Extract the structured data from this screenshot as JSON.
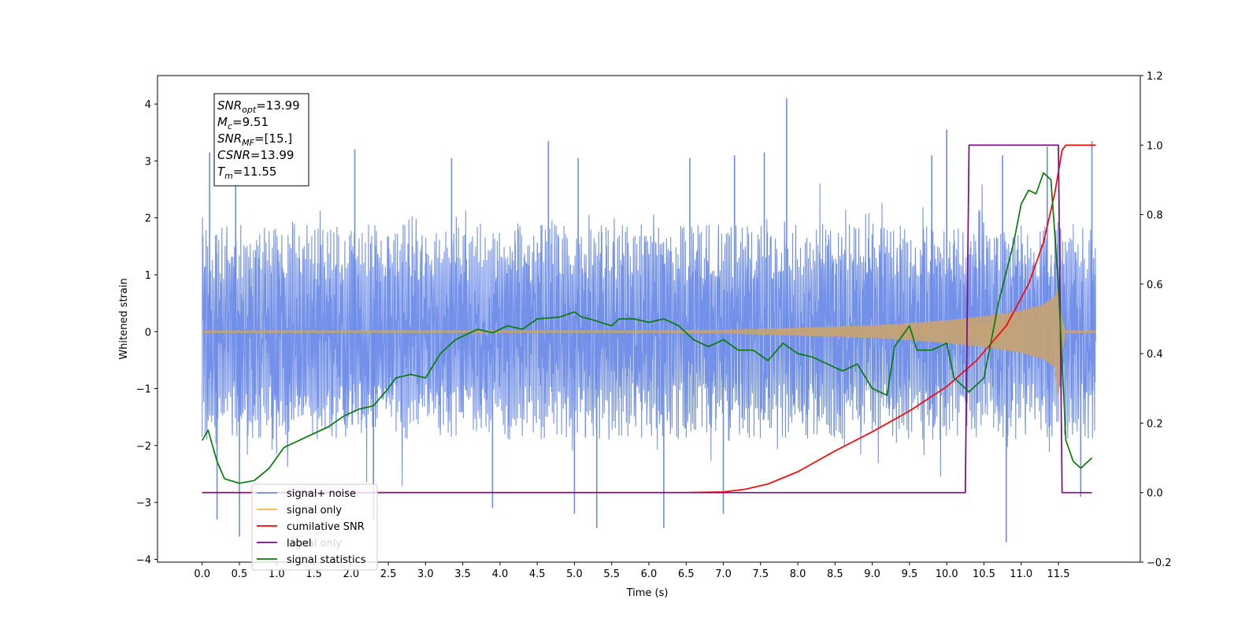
{
  "chart_data": {
    "type": "line",
    "xlabel": "Time (s)",
    "ylabel": "Whitened strain",
    "xlim": [
      -0.6,
      12.6
    ],
    "ylim": [
      -4.05,
      4.5
    ],
    "y2lim": [
      -0.2,
      1.2
    ],
    "x_ticks": [
      0.0,
      0.5,
      1.0,
      1.5,
      2.0,
      2.5,
      3.0,
      3.5,
      4.0,
      4.5,
      5.0,
      5.5,
      6.0,
      6.5,
      7.0,
      7.5,
      8.0,
      8.5,
      9.0,
      9.5,
      10.0,
      10.5,
      11.0,
      11.5
    ],
    "x_tick_labels": [
      "0.0",
      "0.5",
      "1.0",
      "1.5",
      "2.0",
      "2.5",
      "3.0",
      "3.5",
      "4.0",
      "4.5",
      "5.0",
      "5.5",
      "6.0",
      "6.5",
      "7.0",
      "7.5",
      "8.0",
      "8.5",
      "9.0",
      "9.5",
      "10.0",
      "10.5",
      "11.0",
      "11.5"
    ],
    "y_ticks": [
      -4,
      -3,
      -2,
      -1,
      0,
      1,
      2,
      3,
      4
    ],
    "y_tick_labels": [
      "−4",
      "−3",
      "−2",
      "−1",
      "0",
      "1",
      "2",
      "3",
      "4"
    ],
    "y2_ticks": [
      -0.2,
      0.0,
      0.2,
      0.4,
      0.6,
      0.8,
      1.0,
      1.2
    ],
    "y2_tick_labels": [
      "−0.2",
      "0.0",
      "0.2",
      "0.4",
      "0.6",
      "0.8",
      "1.0",
      "1.2"
    ],
    "annotation": {
      "lines": [
        {
          "var": "SNR",
          "sub": "opt",
          "value": "=13.99"
        },
        {
          "var": "M",
          "sub": "c",
          "value": "=9.51"
        },
        {
          "var": "SNR",
          "sub": "MF",
          "value": "=[15.]"
        },
        {
          "var": "CSNR",
          "sub": "",
          "value": "=13.99"
        },
        {
          "var": "T",
          "sub": "m",
          "value": "=11.55"
        }
      ]
    },
    "legend": {
      "placement": "lower-left",
      "entries": [
        "signal+ noise",
        "signal only",
        "cumilative SNR",
        "label",
        "signal statistics"
      ],
      "hidden_text": [
        "signal only",
        ""
      ]
    },
    "series": [
      {
        "name": "signal+ noise",
        "color": "#6b8be8",
        "axis": "left",
        "x_range": [
          0.0,
          12.0
        ],
        "envelope": {
          "x": [
            0.0,
            12.0
          ],
          "upper": [
            1.8,
            1.8
          ],
          "lower": [
            -1.8,
            -1.8
          ]
        },
        "peaks": [
          {
            "x": 0.1,
            "y": 3.15
          },
          {
            "x": 0.45,
            "y": 2.9
          },
          {
            "x": 2.05,
            "y": 3.2
          },
          {
            "x": 3.35,
            "y": 3.05
          },
          {
            "x": 4.65,
            "y": 3.35
          },
          {
            "x": 5.05,
            "y": 3.05
          },
          {
            "x": 6.55,
            "y": 3.05
          },
          {
            "x": 7.15,
            "y": 3.1
          },
          {
            "x": 7.55,
            "y": 3.15
          },
          {
            "x": 7.85,
            "y": 4.1
          },
          {
            "x": 9.8,
            "y": 3.1
          },
          {
            "x": 10.0,
            "y": 3.55
          },
          {
            "x": 10.75,
            "y": 3.1
          },
          {
            "x": 11.35,
            "y": 3.25
          },
          {
            "x": 11.95,
            "y": 3.35
          }
        ],
        "troughs": [
          {
            "x": 0.2,
            "y": -3.3
          },
          {
            "x": 0.5,
            "y": -3.6
          },
          {
            "x": 2.3,
            "y": -3.3
          },
          {
            "x": 3.9,
            "y": -3.1
          },
          {
            "x": 5.0,
            "y": -3.2
          },
          {
            "x": 5.3,
            "y": -3.45
          },
          {
            "x": 6.2,
            "y": -3.45
          },
          {
            "x": 7.0,
            "y": -3.2
          },
          {
            "x": 10.8,
            "y": -3.7
          },
          {
            "x": 11.8,
            "y": -2.9
          }
        ]
      },
      {
        "name": "signal only",
        "color": "#f5b24a",
        "axis": "left",
        "envelope": {
          "x": [
            0.0,
            6.0,
            7.0,
            8.0,
            9.0,
            9.5,
            10.0,
            10.5,
            11.0,
            11.3,
            11.45,
            11.5,
            11.55,
            11.6,
            12.0
          ],
          "upper": [
            0.02,
            0.02,
            0.03,
            0.07,
            0.11,
            0.15,
            0.2,
            0.27,
            0.37,
            0.48,
            0.62,
            0.8,
            0.2,
            0.02,
            0.02
          ],
          "lower": [
            -0.02,
            -0.02,
            -0.03,
            -0.07,
            -0.11,
            -0.15,
            -0.2,
            -0.27,
            -0.37,
            -0.48,
            -0.62,
            -1.2,
            -0.4,
            -0.02,
            -0.02
          ]
        }
      },
      {
        "name": "cumilative SNR",
        "color": "#ff0000",
        "axis": "right",
        "x": [
          0.0,
          6.5,
          7.0,
          7.3,
          7.6,
          8.0,
          8.5,
          9.0,
          9.5,
          10.0,
          10.4,
          10.8,
          11.1,
          11.3,
          11.45,
          11.55,
          11.6,
          12.0
        ],
        "y": [
          0.0,
          0.0,
          0.002,
          0.01,
          0.025,
          0.06,
          0.12,
          0.175,
          0.235,
          0.305,
          0.38,
          0.48,
          0.6,
          0.72,
          0.86,
          0.985,
          1.0,
          1.0
        ]
      },
      {
        "name": "label",
        "color": "#7a0a8c",
        "axis": "right",
        "x": [
          0.0,
          10.25,
          10.3,
          11.5,
          11.55,
          11.95
        ],
        "y": [
          0.0,
          0.0,
          1.0,
          1.0,
          0.0,
          0.0
        ]
      },
      {
        "name": "signal statistics",
        "color": "#0a7a0a",
        "axis": "right",
        "x": [
          0.0,
          0.08,
          0.2,
          0.3,
          0.5,
          0.7,
          0.9,
          1.1,
          1.3,
          1.5,
          1.7,
          1.9,
          2.1,
          2.3,
          2.5,
          2.6,
          2.8,
          3.0,
          3.2,
          3.4,
          3.5,
          3.7,
          3.9,
          4.1,
          4.3,
          4.5,
          4.8,
          5.0,
          5.1,
          5.2,
          5.5,
          5.6,
          5.8,
          6.0,
          6.2,
          6.4,
          6.6,
          6.8,
          7.0,
          7.2,
          7.4,
          7.6,
          7.8,
          8.0,
          8.2,
          8.4,
          8.6,
          8.8,
          9.0,
          9.2,
          9.3,
          9.5,
          9.6,
          9.8,
          10.0,
          10.1,
          10.3,
          10.5,
          10.7,
          10.9,
          11.0,
          11.1,
          11.2,
          11.3,
          11.4,
          11.5,
          11.6,
          11.7,
          11.8,
          11.9,
          11.95
        ],
        "y": [
          0.15,
          0.18,
          0.09,
          0.04,
          0.027,
          0.035,
          0.07,
          0.13,
          0.15,
          0.17,
          0.19,
          0.22,
          0.24,
          0.25,
          0.3,
          0.33,
          0.34,
          0.33,
          0.4,
          0.44,
          0.45,
          0.47,
          0.46,
          0.48,
          0.47,
          0.5,
          0.505,
          0.52,
          0.505,
          0.5,
          0.48,
          0.5,
          0.5,
          0.49,
          0.5,
          0.48,
          0.44,
          0.42,
          0.44,
          0.41,
          0.41,
          0.38,
          0.43,
          0.4,
          0.39,
          0.37,
          0.35,
          0.37,
          0.3,
          0.28,
          0.42,
          0.48,
          0.41,
          0.41,
          0.43,
          0.33,
          0.29,
          0.33,
          0.55,
          0.72,
          0.83,
          0.87,
          0.86,
          0.92,
          0.9,
          0.6,
          0.15,
          0.09,
          0.07,
          0.09,
          0.1
        ]
      }
    ]
  }
}
